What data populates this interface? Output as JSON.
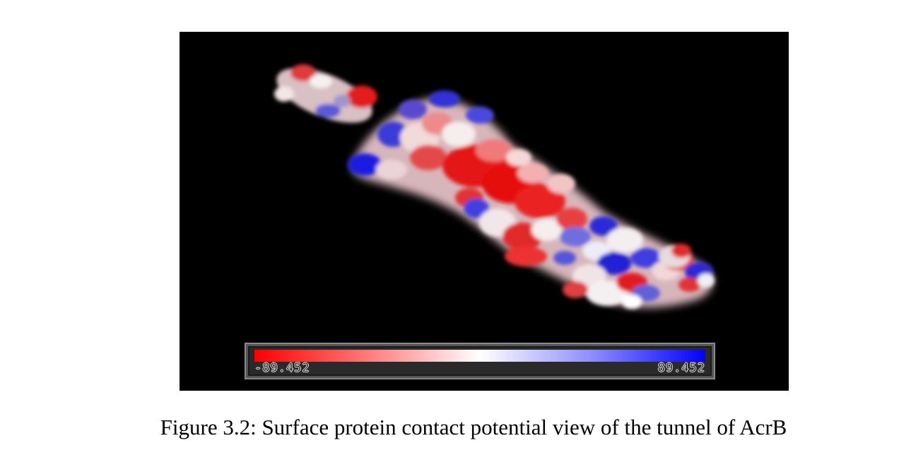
{
  "figure": {
    "caption": "Figure 3.2: Surface protein contact potential view of the tunnel of AcrB"
  },
  "viewer": {
    "background_color": "#000000",
    "color_scale": {
      "min_label": "-89.452",
      "max_label": "89.452",
      "min_value": -89.452,
      "max_value": 89.452,
      "negative_color": "#ff0000",
      "neutral_color": "#ffffff",
      "positive_color": "#0000ff"
    }
  }
}
